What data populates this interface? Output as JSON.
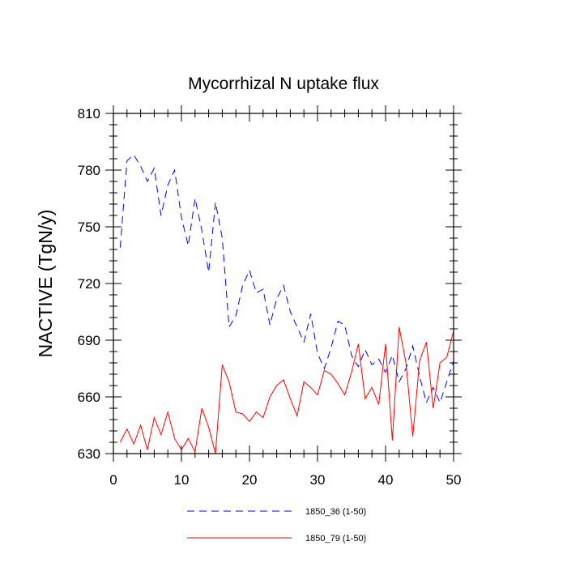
{
  "chart_data": {
    "type": "line",
    "title": "Mycorrhizal N uptake flux",
    "xlabel": "",
    "ylabel": "NACTIVE  (TgN/y)",
    "xlim": [
      0,
      50
    ],
    "ylim": [
      630,
      810
    ],
    "xticks": [
      "0",
      "10",
      "20",
      "30",
      "40",
      "50"
    ],
    "yticks": [
      "630",
      "660",
      "690",
      "720",
      "750",
      "780",
      "810"
    ],
    "grid": false,
    "legend_position": "bottom",
    "x": [
      1,
      2,
      3,
      4,
      5,
      6,
      7,
      8,
      9,
      10,
      11,
      12,
      13,
      14,
      15,
      16,
      17,
      18,
      19,
      20,
      21,
      22,
      23,
      24,
      25,
      26,
      27,
      28,
      29,
      30,
      31,
      32,
      33,
      34,
      35,
      36,
      37,
      38,
      39,
      40,
      41,
      42,
      43,
      44,
      45,
      46,
      47,
      48,
      49,
      50
    ],
    "series": [
      {
        "name": "1850_36 (1-50)",
        "color": "#0000ff",
        "dash": "dashed",
        "values": [
          739,
          785,
          788,
          782,
          774,
          781,
          756,
          772,
          780,
          755,
          740,
          765,
          748,
          726,
          763,
          744,
          697,
          703,
          719,
          727,
          715,
          717,
          698,
          712,
          719,
          705,
          697,
          689,
          704,
          683,
          675,
          686,
          700,
          698,
          682,
          676,
          685,
          677,
          680,
          673,
          682,
          668,
          675,
          687,
          671,
          657,
          665,
          657,
          668,
          679
        ]
      },
      {
        "name": "1850_79 (1-50)",
        "color": "#ff0000",
        "dash": "solid",
        "values": [
          636,
          643,
          635,
          645,
          632,
          649,
          640,
          652,
          638,
          632,
          638,
          631,
          654,
          644,
          630,
          677,
          668,
          652,
          651,
          647,
          652,
          649,
          660,
          666,
          669,
          659,
          650,
          668,
          665,
          661,
          674,
          672,
          667,
          661,
          673,
          688,
          659,
          665,
          656,
          688,
          637,
          697,
          678,
          639,
          679,
          689,
          654,
          678,
          681,
          695
        ]
      }
    ]
  }
}
